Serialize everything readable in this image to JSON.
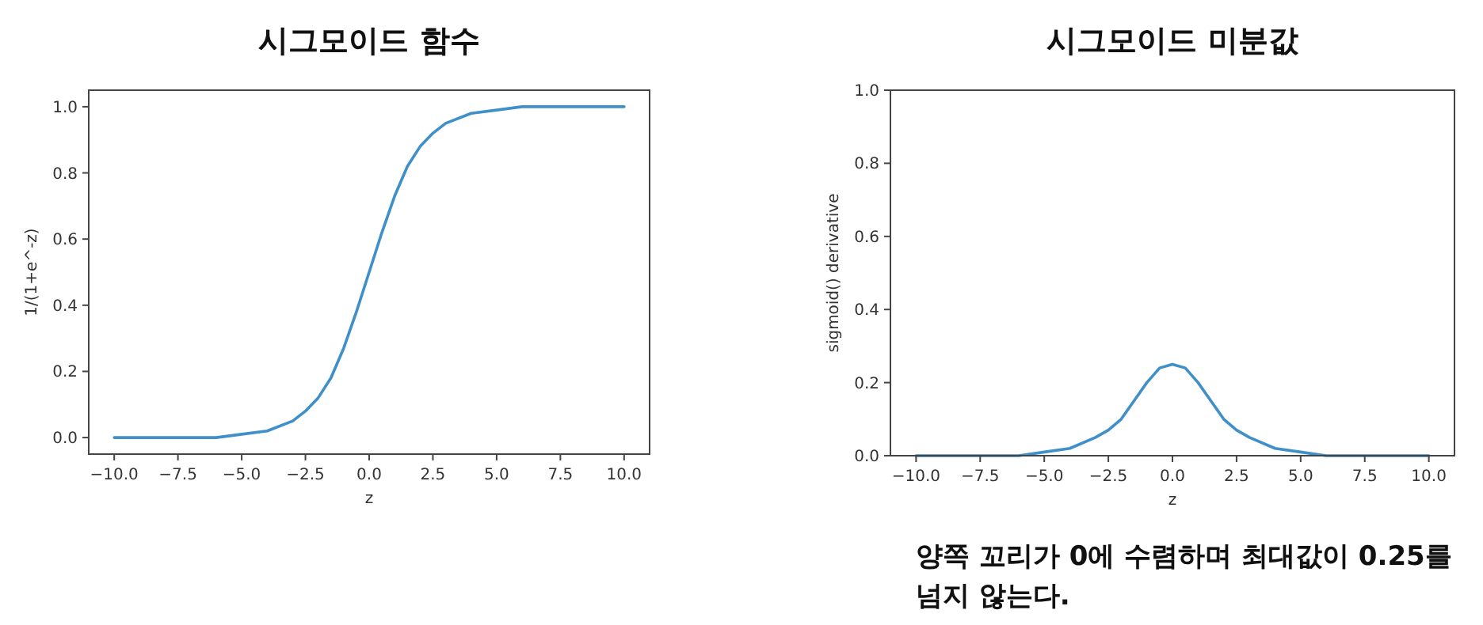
{
  "chart_data": [
    {
      "type": "line",
      "title": "시그모이드 함수",
      "xlabel": "z",
      "ylabel": "1/(1+e^-z)",
      "x": [
        -10,
        -8,
        -6,
        -5,
        -4,
        -3,
        -2.5,
        -2,
        -1.5,
        -1,
        -0.5,
        0,
        0.5,
        1,
        1.5,
        2,
        2.5,
        3,
        4,
        5,
        6,
        8,
        10
      ],
      "series": [
        {
          "color": "#3f8fc9",
          "values": [
            0.0,
            0.0,
            0.0,
            0.01,
            0.02,
            0.05,
            0.08,
            0.12,
            0.18,
            0.27,
            0.38,
            0.5,
            0.62,
            0.73,
            0.82,
            0.88,
            0.92,
            0.95,
            0.98,
            0.99,
            1.0,
            1.0,
            1.0
          ]
        }
      ],
      "xlim": [
        -11,
        11
      ],
      "ylim": [
        -0.05,
        1.05
      ],
      "xticks": [
        {
          "value": -10,
          "label": "−10.0"
        },
        {
          "value": -7.5,
          "label": "−7.5"
        },
        {
          "value": -5,
          "label": "−5.0"
        },
        {
          "value": -2.5,
          "label": "−2.5"
        },
        {
          "value": 0,
          "label": "0.0"
        },
        {
          "value": 2.5,
          "label": "2.5"
        },
        {
          "value": 5,
          "label": "5.0"
        },
        {
          "value": 7.5,
          "label": "7.5"
        },
        {
          "value": 10,
          "label": "10.0"
        }
      ],
      "yticks": [
        {
          "value": 0,
          "label": "0.0"
        },
        {
          "value": 0.2,
          "label": "0.2"
        },
        {
          "value": 0.4,
          "label": "0.4"
        },
        {
          "value": 0.6,
          "label": "0.6"
        },
        {
          "value": 0.8,
          "label": "0.8"
        },
        {
          "value": 1,
          "label": "1.0"
        }
      ]
    },
    {
      "type": "line",
      "title": "시그모이드 미분값",
      "xlabel": "z",
      "ylabel": "sigmoid() derivative",
      "x": [
        -10,
        -8,
        -6,
        -5,
        -4,
        -3,
        -2.5,
        -2,
        -1.5,
        -1,
        -0.5,
        0,
        0.5,
        1,
        1.5,
        2,
        2.5,
        3,
        4,
        5,
        6,
        8,
        10
      ],
      "series": [
        {
          "color": "#3f8fc9",
          "values": [
            0.0,
            0.0,
            0.0,
            0.01,
            0.02,
            0.05,
            0.07,
            0.1,
            0.15,
            0.2,
            0.24,
            0.25,
            0.24,
            0.2,
            0.15,
            0.1,
            0.07,
            0.05,
            0.02,
            0.01,
            0.0,
            0.0,
            0.0
          ]
        }
      ],
      "xlim": [
        -11,
        11
      ],
      "ylim": [
        0,
        1
      ],
      "xticks": [
        {
          "value": -10,
          "label": "−10.0"
        },
        {
          "value": -7.5,
          "label": "−7.5"
        },
        {
          "value": -5,
          "label": "−5.0"
        },
        {
          "value": -2.5,
          "label": "−2.5"
        },
        {
          "value": 0,
          "label": "0.0"
        },
        {
          "value": 2.5,
          "label": "2.5"
        },
        {
          "value": 5,
          "label": "5.0"
        },
        {
          "value": 7.5,
          "label": "7.5"
        },
        {
          "value": 10,
          "label": "10.0"
        }
      ],
      "yticks": [
        {
          "value": 0,
          "label": "0.0"
        },
        {
          "value": 0.2,
          "label": "0.2"
        },
        {
          "value": 0.4,
          "label": "0.4"
        },
        {
          "value": 0.6,
          "label": "0.6"
        },
        {
          "value": 0.8,
          "label": "0.8"
        },
        {
          "value": 1,
          "label": "1.0"
        }
      ],
      "annotations": [
        "양쪽 꼬리가 0에 수렴하며 최대값이 0.25를 넘지 않는다."
      ]
    }
  ]
}
